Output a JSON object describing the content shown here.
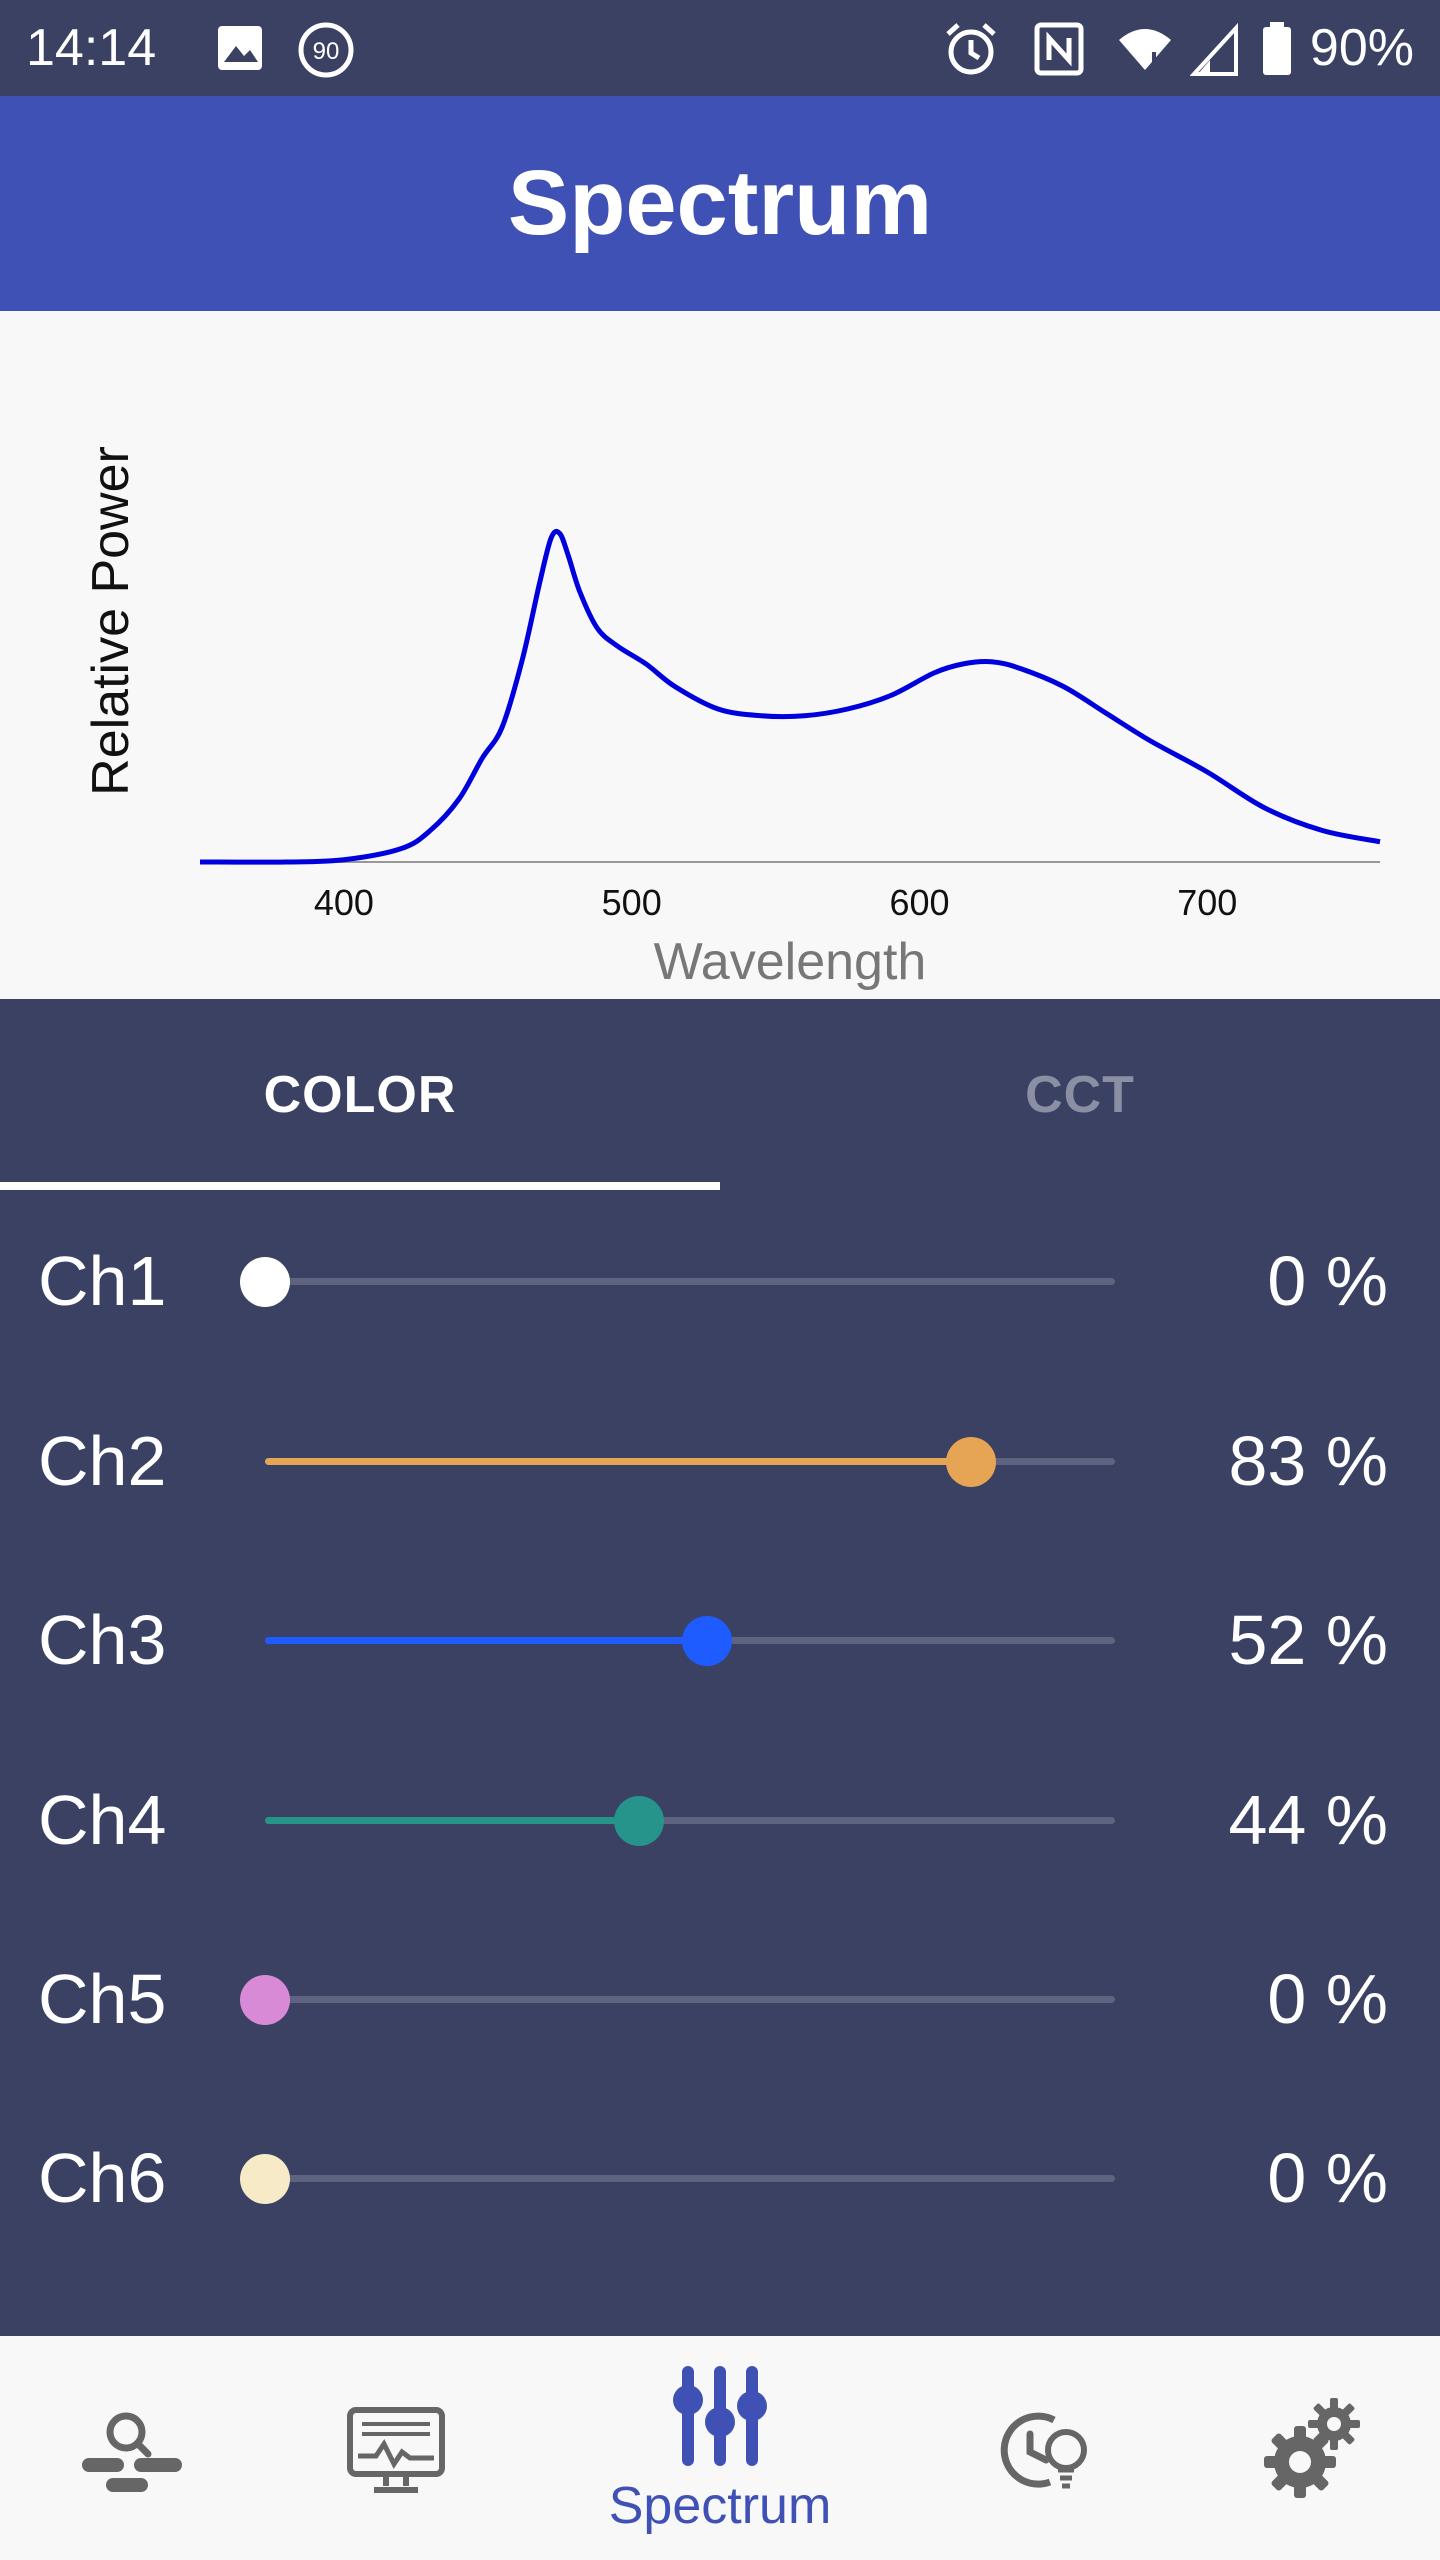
{
  "status_bar": {
    "time": "14:14",
    "battery": "90%",
    "icons": [
      "image-icon",
      "data-saver-90-icon",
      "alarm-icon",
      "nfc-icon",
      "wifi-icon",
      "signal-icon",
      "battery-icon"
    ]
  },
  "app_bar": {
    "title": "Spectrum"
  },
  "chart": {
    "ylabel": "Relative Power",
    "xlabel": "Wavelength",
    "tick_labels": [
      "400",
      "500",
      "600",
      "700"
    ]
  },
  "chart_data": {
    "type": "line",
    "title": "",
    "xlabel": "Wavelength",
    "ylabel": "Relative Power",
    "xlim": [
      350,
      760
    ],
    "ylim": [
      0,
      1
    ],
    "xticks": [
      400,
      500,
      600,
      700
    ],
    "series": [
      {
        "color": "#0000dd",
        "x": [
          350,
          380,
          400,
          420,
          430,
          440,
          448,
          455,
          462,
          468,
          472,
          475,
          478,
          482,
          488,
          495,
          505,
          515,
          530,
          545,
          560,
          575,
          590,
          605,
          615,
          625,
          635,
          650,
          665,
          680,
          700,
          720,
          740,
          760
        ],
        "y": [
          0.0,
          0.0,
          0.005,
          0.03,
          0.07,
          0.14,
          0.23,
          0.3,
          0.45,
          0.62,
          0.72,
          0.73,
          0.68,
          0.6,
          0.52,
          0.48,
          0.44,
          0.39,
          0.34,
          0.325,
          0.325,
          0.34,
          0.37,
          0.42,
          0.44,
          0.445,
          0.43,
          0.39,
          0.33,
          0.27,
          0.2,
          0.12,
          0.07,
          0.045
        ]
      }
    ]
  },
  "tabs": [
    {
      "label": "COLOR",
      "active": true
    },
    {
      "label": "CCT",
      "active": false
    }
  ],
  "channels": [
    {
      "label": "Ch1",
      "value": 0,
      "value_text": "0 %",
      "color": "#ffffff"
    },
    {
      "label": "Ch2",
      "value": 83,
      "value_text": "83 %",
      "color": "#e6a455"
    },
    {
      "label": "Ch3",
      "value": 52,
      "value_text": "52 %",
      "color": "#1f5cff"
    },
    {
      "label": "Ch4",
      "value": 44,
      "value_text": "44 %",
      "color": "#27948c"
    },
    {
      "label": "Ch5",
      "value": 0,
      "value_text": "0 %",
      "color": "#d98ad6"
    },
    {
      "label": "Ch6",
      "value": 0,
      "value_text": "0 %",
      "color": "#f6ebc6"
    }
  ],
  "bottom_nav": {
    "items": [
      {
        "icon": "search-device-icon",
        "label": ""
      },
      {
        "icon": "monitor-icon",
        "label": ""
      },
      {
        "icon": "sliders-icon",
        "label": "Spectrum",
        "active": true
      },
      {
        "icon": "schedule-light-icon",
        "label": ""
      },
      {
        "icon": "settings-gears-icon",
        "label": ""
      }
    ]
  },
  "colors": {
    "primary": "#3f51b5",
    "panel": "#3a4163",
    "track": "#5e6480"
  }
}
